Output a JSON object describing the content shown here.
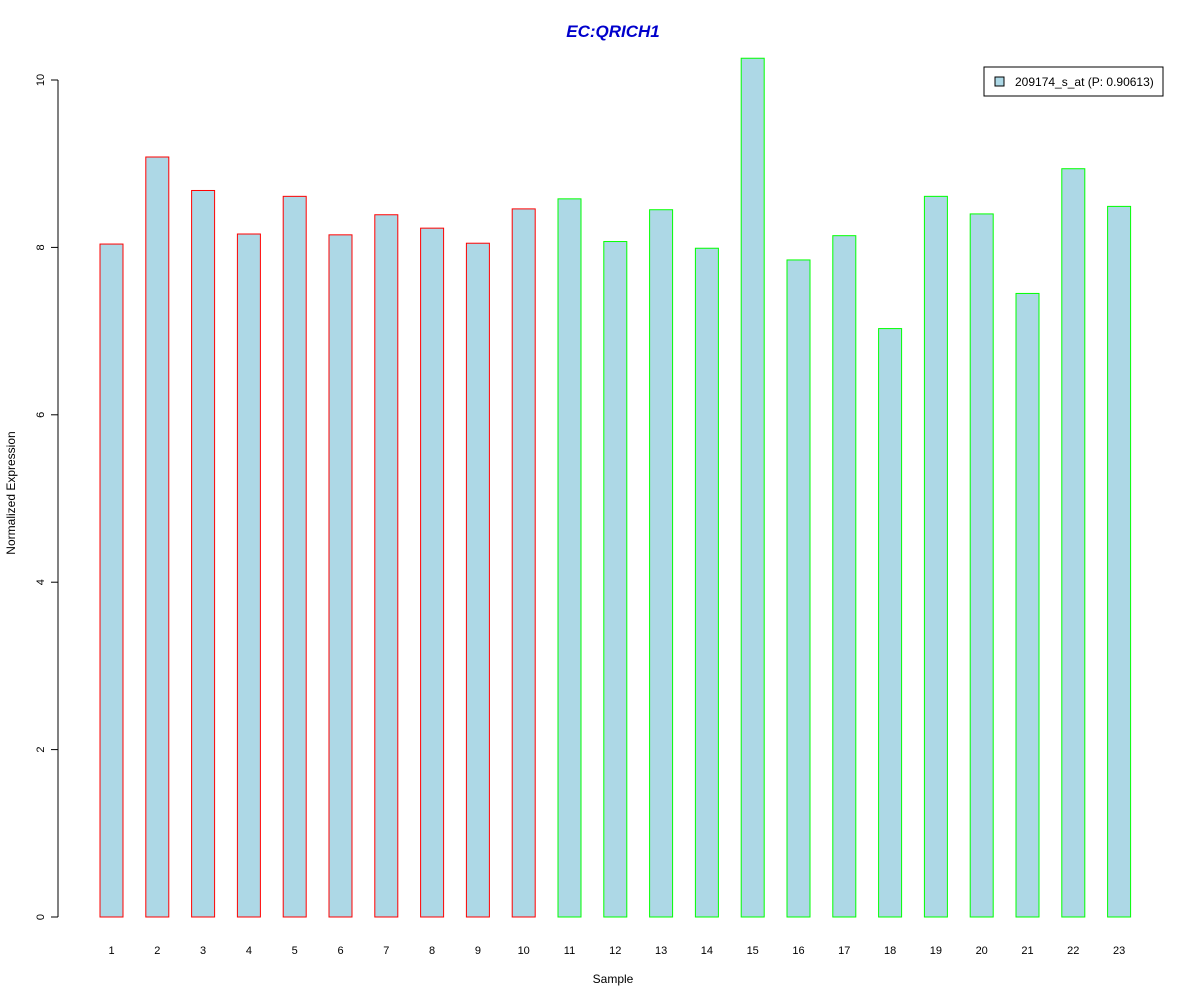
{
  "chart_data": {
    "type": "bar",
    "title": "EC:QRICH1",
    "xlabel": "Sample",
    "ylabel": "Normalized Expression",
    "ylim": [
      0,
      10.25
    ],
    "yticks": [
      0,
      2,
      4,
      6,
      8,
      10
    ],
    "grid": false,
    "legend_position": "top-right",
    "categories": [
      "1",
      "2",
      "3",
      "4",
      "5",
      "6",
      "7",
      "8",
      "9",
      "10",
      "11",
      "12",
      "13",
      "14",
      "15",
      "16",
      "17",
      "18",
      "19",
      "20",
      "21",
      "22",
      "23"
    ],
    "series": [
      {
        "name": "209174_s_at (P: 0.90613)",
        "values": [
          8.04,
          9.08,
          8.68,
          8.16,
          8.61,
          8.15,
          8.39,
          8.23,
          8.05,
          8.46,
          8.58,
          8.07,
          8.45,
          7.99,
          10.26,
          7.85,
          8.14,
          7.03,
          8.61,
          8.4,
          7.45,
          8.94,
          8.49
        ]
      }
    ],
    "group_border_colors": [
      "#ff0000",
      "#ff0000",
      "#ff0000",
      "#ff0000",
      "#ff0000",
      "#ff0000",
      "#ff0000",
      "#ff0000",
      "#ff0000",
      "#ff0000",
      "#00ff00",
      "#00ff00",
      "#00ff00",
      "#00ff00",
      "#00ff00",
      "#00ff00",
      "#00ff00",
      "#00ff00",
      "#00ff00",
      "#00ff00",
      "#00ff00",
      "#00ff00",
      "#00ff00"
    ],
    "colors": {
      "bar_fill": "#add8e6",
      "title": "#0000cc",
      "axis": "#000000"
    }
  }
}
